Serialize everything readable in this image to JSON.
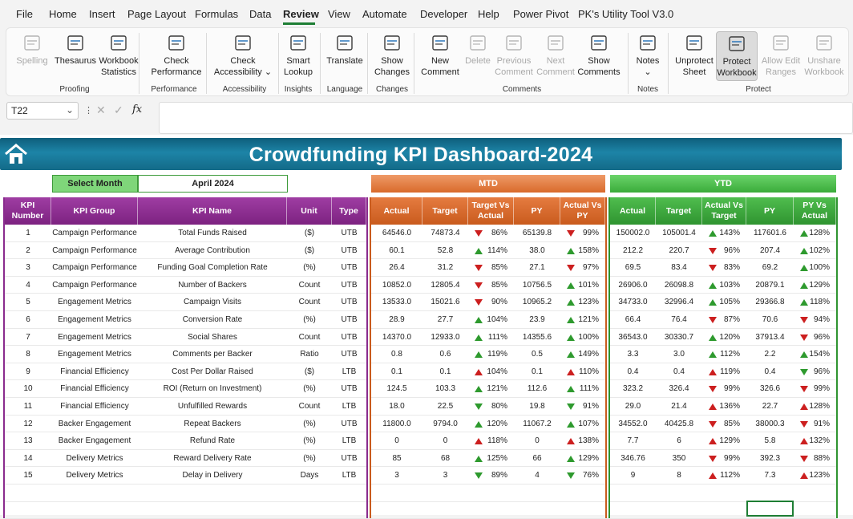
{
  "menu": [
    "File",
    "Home",
    "Insert",
    "Page Layout",
    "Formulas",
    "Data",
    "Review",
    "View",
    "Automate",
    "Developer",
    "Help",
    "Power Pivot",
    "PK's Utility Tool V3.0"
  ],
  "menu_active": "Review",
  "ribbon": {
    "buttons": [
      {
        "label": "Spelling",
        "icon": "abc-icon",
        "disabled": true
      },
      {
        "label": "Thesaurus",
        "icon": "book-icon"
      },
      {
        "label": "Workbook Statistics",
        "icon": "statistics-icon"
      },
      {
        "label": "Check Performance",
        "icon": "performance-icon"
      },
      {
        "label": "Check Accessibility ⌄",
        "icon": "accessibility-icon"
      },
      {
        "label": "Smart Lookup",
        "icon": "lookup-icon"
      },
      {
        "label": "Translate",
        "icon": "translate-icon"
      },
      {
        "label": "Show Changes",
        "icon": "changes-icon"
      },
      {
        "label": "New Comment",
        "icon": "new-comment-icon"
      },
      {
        "label": "Delete",
        "icon": "delete-comment-icon",
        "disabled": true
      },
      {
        "label": "Previous Comment",
        "icon": "previous-comment-icon",
        "disabled": true
      },
      {
        "label": "Next Comment",
        "icon": "next-comment-icon",
        "disabled": true
      },
      {
        "label": "Show Comments",
        "icon": "show-comments-icon"
      },
      {
        "label": "Notes ⌄",
        "icon": "notes-icon"
      },
      {
        "label": "Unprotect Sheet",
        "icon": "unprotect-sheet-icon"
      },
      {
        "label": "Protect Workbook",
        "icon": "protect-workbook-icon",
        "selected": true
      },
      {
        "label": "Allow Edit Ranges",
        "icon": "allow-edit-icon",
        "disabled": true
      },
      {
        "label": "Unshare Workbook",
        "icon": "unshare-icon",
        "disabled": true
      }
    ],
    "groups": [
      "Proofing",
      "Performance",
      "Accessibility",
      "Insights",
      "Language",
      "Changes",
      "Comments",
      "Notes",
      "Protect"
    ]
  },
  "formula_bar": {
    "name_box": "T22",
    "fx": "fx",
    "formula": ""
  },
  "dashboard": {
    "title": "Crowdfunding KPI Dashboard-2024",
    "select_month_label": "Select Month",
    "month": "April 2024",
    "mtd_label": "MTD",
    "ytd_label": "YTD",
    "kpi_headers": [
      "KPI Number",
      "KPI Group",
      "KPI Name",
      "Unit",
      "Type"
    ],
    "mtd_headers": [
      "Actual",
      "Target",
      "Target Vs Actual",
      "PY",
      "Actual Vs PY"
    ],
    "ytd_headers": [
      "Actual",
      "Target",
      "Actual Vs Target",
      "PY",
      "PY Vs Actual"
    ],
    "rows": [
      {
        "no": "1",
        "group": "Campaign Performance",
        "name": "Total Funds Raised",
        "unit": "($)",
        "type": "UTB",
        "m_act": "64546.0",
        "m_tgt": "74873.4",
        "m_tva": "86%",
        "m_tva_ic": "dn",
        "m_py": "65139.8",
        "m_avp": "99%",
        "m_avp_ic": "dn",
        "y_act": "150002.0",
        "y_tgt": "105001.4",
        "y_avt": "143%",
        "y_avt_ic": "up",
        "y_py": "117601.6",
        "y_pva": "128%",
        "y_pva_ic": "up"
      },
      {
        "no": "2",
        "group": "Campaign Performance",
        "name": "Average Contribution",
        "unit": "($)",
        "type": "UTB",
        "m_act": "60.1",
        "m_tgt": "52.8",
        "m_tva": "114%",
        "m_tva_ic": "up",
        "m_py": "38.0",
        "m_avp": "158%",
        "m_avp_ic": "up",
        "y_act": "212.2",
        "y_tgt": "220.7",
        "y_avt": "96%",
        "y_avt_ic": "dn",
        "y_py": "207.4",
        "y_pva": "102%",
        "y_pva_ic": "up"
      },
      {
        "no": "3",
        "group": "Campaign Performance",
        "name": "Funding Goal Completion Rate",
        "unit": "(%)",
        "type": "UTB",
        "m_act": "26.4",
        "m_tgt": "31.2",
        "m_tva": "85%",
        "m_tva_ic": "dn",
        "m_py": "27.1",
        "m_avp": "97%",
        "m_avp_ic": "dn",
        "y_act": "69.5",
        "y_tgt": "83.4",
        "y_avt": "83%",
        "y_avt_ic": "dn",
        "y_py": "69.2",
        "y_pva": "100%",
        "y_pva_ic": "up"
      },
      {
        "no": "4",
        "group": "Campaign Performance",
        "name": "Number of Backers",
        "unit": "Count",
        "type": "UTB",
        "m_act": "10852.0",
        "m_tgt": "12805.4",
        "m_tva": "85%",
        "m_tva_ic": "dn",
        "m_py": "10756.5",
        "m_avp": "101%",
        "m_avp_ic": "up",
        "y_act": "26906.0",
        "y_tgt": "26098.8",
        "y_avt": "103%",
        "y_avt_ic": "up",
        "y_py": "20879.1",
        "y_pva": "129%",
        "y_pva_ic": "up"
      },
      {
        "no": "5",
        "group": "Engagement Metrics",
        "name": "Campaign Visits",
        "unit": "Count",
        "type": "UTB",
        "m_act": "13533.0",
        "m_tgt": "15021.6",
        "m_tva": "90%",
        "m_tva_ic": "dn",
        "m_py": "10965.2",
        "m_avp": "123%",
        "m_avp_ic": "up",
        "y_act": "34733.0",
        "y_tgt": "32996.4",
        "y_avt": "105%",
        "y_avt_ic": "up",
        "y_py": "29366.8",
        "y_pva": "118%",
        "y_pva_ic": "up"
      },
      {
        "no": "6",
        "group": "Engagement Metrics",
        "name": "Conversion Rate",
        "unit": "(%)",
        "type": "UTB",
        "m_act": "28.9",
        "m_tgt": "27.7",
        "m_tva": "104%",
        "m_tva_ic": "up",
        "m_py": "23.9",
        "m_avp": "121%",
        "m_avp_ic": "up",
        "y_act": "66.4",
        "y_tgt": "76.4",
        "y_avt": "87%",
        "y_avt_ic": "dn",
        "y_py": "70.6",
        "y_pva": "94%",
        "y_pva_ic": "dn"
      },
      {
        "no": "7",
        "group": "Engagement Metrics",
        "name": "Social Shares",
        "unit": "Count",
        "type": "UTB",
        "m_act": "14370.0",
        "m_tgt": "12933.0",
        "m_tva": "111%",
        "m_tva_ic": "up",
        "m_py": "14355.6",
        "m_avp": "100%",
        "m_avp_ic": "up",
        "y_act": "36543.0",
        "y_tgt": "30330.7",
        "y_avt": "120%",
        "y_avt_ic": "up",
        "y_py": "37913.4",
        "y_pva": "96%",
        "y_pva_ic": "dn"
      },
      {
        "no": "8",
        "group": "Engagement Metrics",
        "name": "Comments per Backer",
        "unit": "Ratio",
        "type": "UTB",
        "m_act": "0.8",
        "m_tgt": "0.6",
        "m_tva": "119%",
        "m_tva_ic": "up",
        "m_py": "0.5",
        "m_avp": "149%",
        "m_avp_ic": "up",
        "y_act": "3.3",
        "y_tgt": "3.0",
        "y_avt": "112%",
        "y_avt_ic": "up",
        "y_py": "2.2",
        "y_pva": "154%",
        "y_pva_ic": "up"
      },
      {
        "no": "9",
        "group": "Financial Efficiency",
        "name": "Cost Per Dollar Raised",
        "unit": "($)",
        "type": "LTB",
        "m_act": "0.1",
        "m_tgt": "0.1",
        "m_tva": "104%",
        "m_tva_ic": "upr",
        "m_py": "0.1",
        "m_avp": "110%",
        "m_avp_ic": "upr",
        "y_act": "0.4",
        "y_tgt": "0.4",
        "y_avt": "119%",
        "y_avt_ic": "upr",
        "y_py": "0.4",
        "y_pva": "96%",
        "y_pva_ic": "dng"
      },
      {
        "no": "10",
        "group": "Financial Efficiency",
        "name": "ROI (Return on Investment)",
        "unit": "(%)",
        "type": "UTB",
        "m_act": "124.5",
        "m_tgt": "103.3",
        "m_tva": "121%",
        "m_tva_ic": "up",
        "m_py": "112.6",
        "m_avp": "111%",
        "m_avp_ic": "up",
        "y_act": "323.2",
        "y_tgt": "326.4",
        "y_avt": "99%",
        "y_avt_ic": "dn",
        "y_py": "326.6",
        "y_pva": "99%",
        "y_pva_ic": "dn"
      },
      {
        "no": "11",
        "group": "Financial Efficiency",
        "name": "Unfulfilled Rewards",
        "unit": "Count",
        "type": "LTB",
        "m_act": "18.0",
        "m_tgt": "22.5",
        "m_tva": "80%",
        "m_tva_ic": "dng",
        "m_py": "19.8",
        "m_avp": "91%",
        "m_avp_ic": "dng",
        "y_act": "29.0",
        "y_tgt": "21.4",
        "y_avt": "136%",
        "y_avt_ic": "upr",
        "y_py": "22.7",
        "y_pva": "128%",
        "y_pva_ic": "upr"
      },
      {
        "no": "12",
        "group": "Backer Engagement",
        "name": "Repeat Backers",
        "unit": "(%)",
        "type": "UTB",
        "m_act": "11800.0",
        "m_tgt": "9794.0",
        "m_tva": "120%",
        "m_tva_ic": "up",
        "m_py": "11067.2",
        "m_avp": "107%",
        "m_avp_ic": "up",
        "y_act": "34552.0",
        "y_tgt": "40425.8",
        "y_avt": "85%",
        "y_avt_ic": "dn",
        "y_py": "38000.3",
        "y_pva": "91%",
        "y_pva_ic": "dn"
      },
      {
        "no": "13",
        "group": "Backer Engagement",
        "name": "Refund Rate",
        "unit": "(%)",
        "type": "LTB",
        "m_act": "0",
        "m_tgt": "0",
        "m_tva": "118%",
        "m_tva_ic": "upr",
        "m_py": "0",
        "m_avp": "138%",
        "m_avp_ic": "upr",
        "y_act": "7.7",
        "y_tgt": "6",
        "y_avt": "129%",
        "y_avt_ic": "upr",
        "y_py": "5.8",
        "y_pva": "132%",
        "y_pva_ic": "upr"
      },
      {
        "no": "14",
        "group": "Delivery Metrics",
        "name": "Reward Delivery Rate",
        "unit": "(%)",
        "type": "UTB",
        "m_act": "85",
        "m_tgt": "68",
        "m_tva": "125%",
        "m_tva_ic": "up",
        "m_py": "66",
        "m_avp": "129%",
        "m_avp_ic": "up",
        "y_act": "346.76",
        "y_tgt": "350",
        "y_avt": "99%",
        "y_avt_ic": "dn",
        "y_py": "392.3",
        "y_pva": "88%",
        "y_pva_ic": "dn"
      },
      {
        "no": "15",
        "group": "Delivery Metrics",
        "name": "Delay in Delivery",
        "unit": "Days",
        "type": "LTB",
        "m_act": "3",
        "m_tgt": "3",
        "m_tva": "89%",
        "m_tva_ic": "dng",
        "m_py": "4",
        "m_avp": "76%",
        "m_avp_ic": "dng",
        "y_act": "9",
        "y_tgt": "8",
        "y_avt": "112%",
        "y_avt_ic": "upr",
        "y_py": "7.3",
        "y_pva": "123%",
        "y_pva_ic": "upr"
      }
    ]
  }
}
